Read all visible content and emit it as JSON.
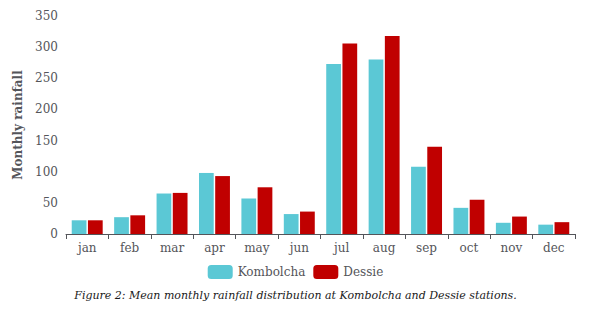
{
  "chart_data": {
    "type": "bar",
    "caption": "Figure 2: Mean monthly rainfall distribution at Kombolcha and Dessie stations.",
    "ylabel": "Monthly rainfall",
    "categories": [
      "jan",
      "feb",
      "mar",
      "apr",
      "may",
      "jun",
      "jul",
      "aug",
      "sep",
      "oct",
      "nov",
      "dec"
    ],
    "series": [
      {
        "name": "Kombolcha",
        "color": "#5bc8d5",
        "values": [
          22,
          27,
          65,
          98,
          57,
          32,
          273,
          280,
          108,
          42,
          18,
          15
        ]
      },
      {
        "name": "Dessie",
        "color": "#c00000",
        "values": [
          22,
          30,
          66,
          93,
          75,
          36,
          306,
          318,
          140,
          55,
          28,
          19
        ]
      }
    ],
    "ylim": [
      0,
      350
    ],
    "yticks": [
      0,
      50,
      100,
      150,
      200,
      250,
      300,
      350
    ],
    "grid": false,
    "legend": "bottom"
  }
}
